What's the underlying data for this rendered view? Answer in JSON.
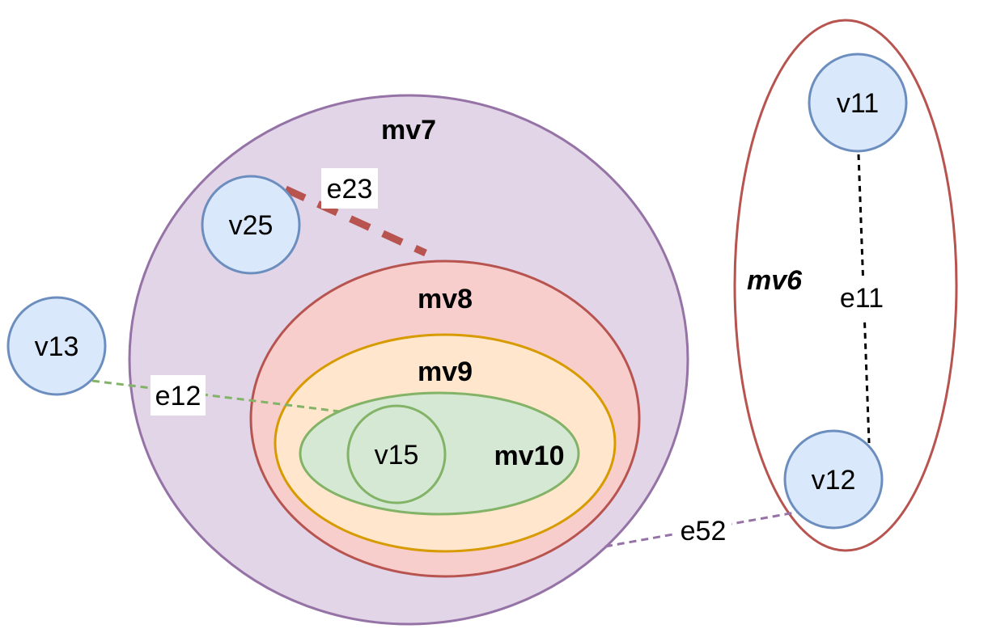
{
  "groups": {
    "mv7": {
      "label": "mv7",
      "fill": "#e1d5e7",
      "stroke": "#9673a6"
    },
    "mv8": {
      "label": "mv8",
      "fill": "#f8cecc",
      "stroke": "#b85450"
    },
    "mv9": {
      "label": "mv9",
      "fill": "#ffe6cc",
      "stroke": "#d79b00"
    },
    "mv10": {
      "label": "mv10",
      "fill": "#d5e8d4",
      "stroke": "#82b366"
    },
    "mv6": {
      "label": "mv6",
      "fill": "#ffffff",
      "stroke": "#b85450"
    }
  },
  "nodes": {
    "v11": {
      "label": "v11"
    },
    "v12": {
      "label": "v12"
    },
    "v13": {
      "label": "v13"
    },
    "v15": {
      "label": "v15"
    },
    "v25": {
      "label": "v25"
    }
  },
  "node_colors": {
    "fill": "#dae8fc",
    "stroke": "#6c8ebf",
    "v15_fill": "#d5e8d4",
    "v15_stroke": "#82b366"
  },
  "edges": {
    "e11": {
      "label": "e11",
      "color": "#000000"
    },
    "e12": {
      "label": "e12",
      "color": "#82b366"
    },
    "e23": {
      "label": "e23",
      "color": "#b85450"
    },
    "e52": {
      "label": "e52",
      "color": "#9673a6"
    }
  }
}
